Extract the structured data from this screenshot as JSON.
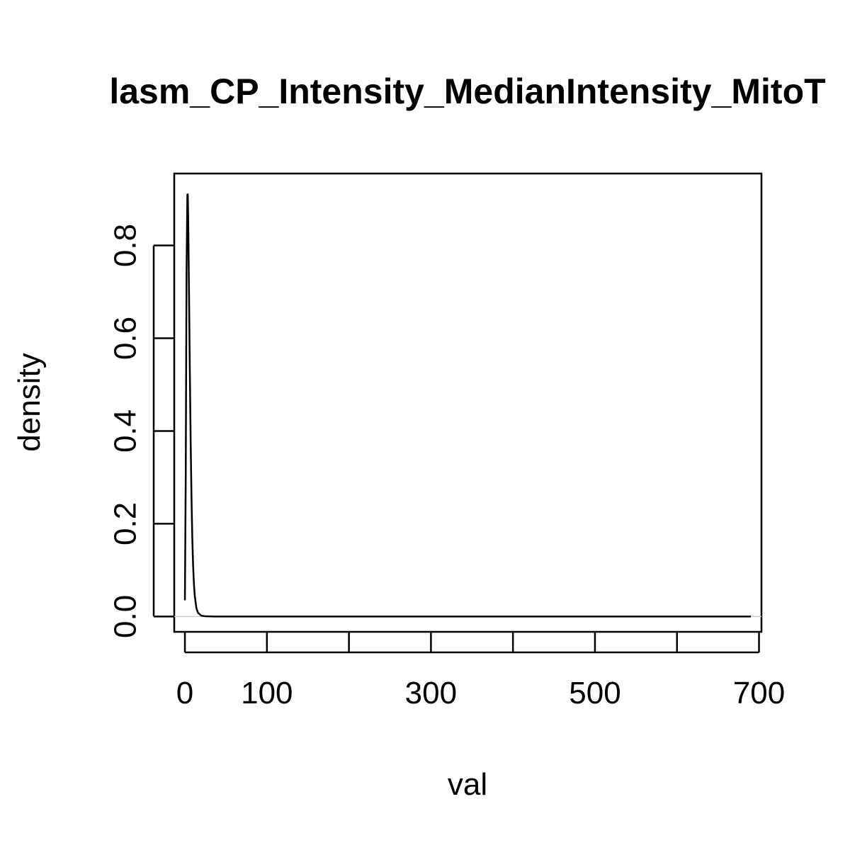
{
  "chart_data": {
    "type": "line",
    "title": "lasm_CP_Intensity_MedianIntensity_MitoT",
    "xlabel": "val",
    "ylabel": "density",
    "xlim": [
      -13,
      703
    ],
    "ylim": [
      -0.033,
      0.955
    ],
    "x_ticks": [
      0,
      100,
      200,
      300,
      400,
      500,
      600,
      700
    ],
    "x_tick_labels": [
      "0",
      "100",
      "",
      "300",
      "",
      "500",
      "",
      "700"
    ],
    "y_ticks": [
      0.0,
      0.2,
      0.4,
      0.6,
      0.8
    ],
    "y_tick_labels": [
      "0.0",
      "0.2",
      "0.4",
      "0.6",
      "0.8"
    ],
    "grid": false,
    "baseline": 0,
    "baseline_color": "#cccccc",
    "line_color": "#000000",
    "series": [
      {
        "x": [
          0,
          1,
          2,
          3,
          3.5,
          4,
          5,
          6,
          7,
          8,
          9,
          10,
          11,
          12,
          14,
          16,
          20,
          25,
          35,
          50,
          100,
          200,
          300,
          400,
          500,
          600,
          690
        ],
        "values": [
          0.035,
          0.3,
          0.75,
          0.91,
          0.91,
          0.86,
          0.7,
          0.53,
          0.38,
          0.26,
          0.17,
          0.11,
          0.07,
          0.045,
          0.018,
          0.008,
          0.002,
          0.0005,
          0.0001,
          0,
          0,
          0,
          0,
          0,
          0,
          0,
          0
        ]
      }
    ]
  }
}
